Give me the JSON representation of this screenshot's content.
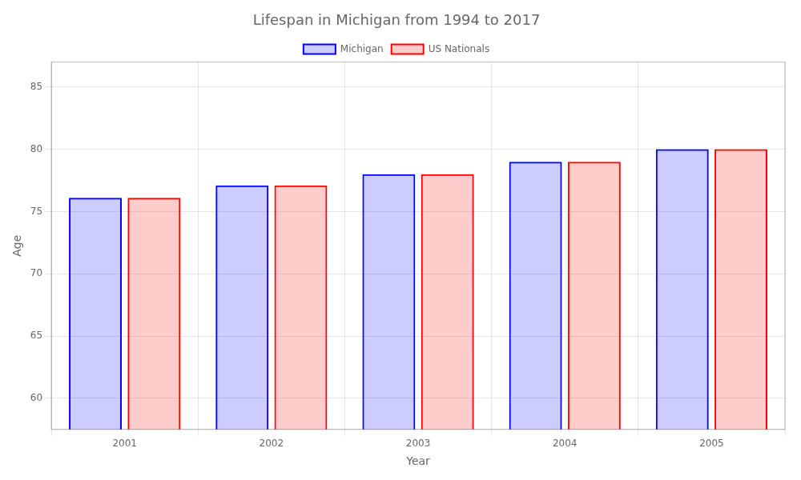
{
  "chart_data": {
    "type": "bar",
    "title": "Lifespan in Michigan from 1994 to 2017",
    "x_label": "Year",
    "y_label": "Age",
    "categories": [
      "2001",
      "2002",
      "2003",
      "2004",
      "2005"
    ],
    "series": [
      {
        "name": "Michigan",
        "color": "#0000ff",
        "values": [
          76.1,
          77.1,
          78.0,
          79.0,
          80.0
        ]
      },
      {
        "name": "US Nationals",
        "color": "#ff0000",
        "values": [
          76.1,
          77.1,
          78.0,
          79.0,
          80.0
        ]
      }
    ],
    "ylim": [
      57.5,
      87
    ],
    "yticks": [
      60,
      65,
      70,
      75,
      80,
      85
    ],
    "grid": true,
    "legend": "top"
  }
}
